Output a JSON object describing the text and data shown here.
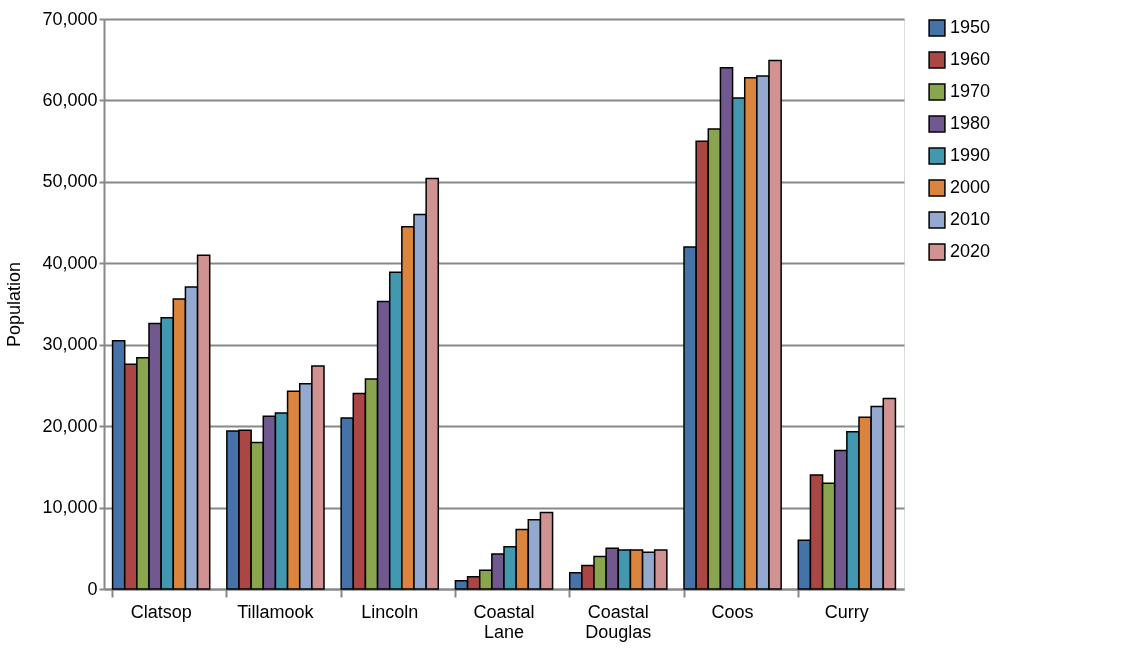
{
  "chart_data": {
    "type": "bar",
    "ylabel": "Population",
    "categories": [
      "Clatsop",
      "Tillamook",
      "Lincoln",
      "Coastal Lane",
      "Coastal Douglas",
      "Coos",
      "Curry"
    ],
    "ylim": [
      0,
      70000
    ],
    "yticks": [
      0,
      {
        "value": 10000,
        "label": "10,000"
      },
      {
        "value": 20000,
        "label": "20,000"
      },
      {
        "value": 30000,
        "label": "30,000"
      },
      {
        "value": 40000,
        "label": "40,000"
      },
      {
        "value": 50000,
        "label": "50,000"
      },
      {
        "value": 60000,
        "label": "60,000"
      },
      {
        "value": 70000,
        "label": "70,000"
      }
    ],
    "grid": "y",
    "legend": "right",
    "series": [
      {
        "name": "1950",
        "color": "#4572a7",
        "values": [
          30500,
          19400,
          21000,
          1000,
          2000,
          42000,
          6000
        ]
      },
      {
        "name": "1960",
        "color": "#aa4643",
        "values": [
          27600,
          19500,
          24000,
          1500,
          2900,
          55000,
          14000
        ]
      },
      {
        "name": "1970",
        "color": "#89a54e",
        "values": [
          28400,
          18000,
          25800,
          2300,
          4000,
          56500,
          13000
        ]
      },
      {
        "name": "1980",
        "color": "#71588f",
        "values": [
          32600,
          21200,
          35300,
          4300,
          5000,
          64000,
          17000
        ]
      },
      {
        "name": "1990",
        "color": "#4198af",
        "values": [
          33300,
          21600,
          38900,
          5200,
          4800,
          60300,
          19300
        ]
      },
      {
        "name": "2000",
        "color": "#db843d",
        "values": [
          35600,
          24300,
          44500,
          7300,
          4800,
          62800,
          21100
        ]
      },
      {
        "name": "2010",
        "color": "#93a9cf",
        "values": [
          37100,
          25200,
          46000,
          8500,
          4500,
          63000,
          22400
        ]
      },
      {
        "name": "2020",
        "color": "#d19392",
        "values": [
          41000,
          27400,
          50400,
          9400,
          4800,
          64900,
          23400
        ]
      }
    ]
  }
}
